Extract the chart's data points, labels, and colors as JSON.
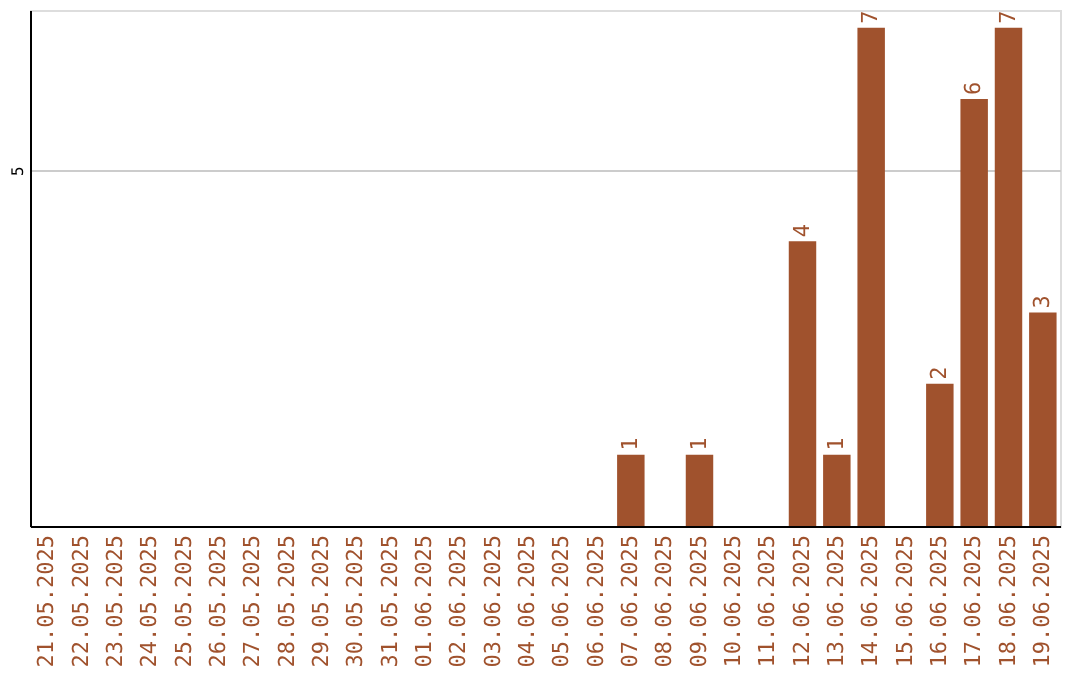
{
  "chart_data": {
    "type": "bar",
    "categories": [
      "21.05.2025",
      "22.05.2025",
      "23.05.2025",
      "24.05.2025",
      "25.05.2025",
      "26.05.2025",
      "27.05.2025",
      "28.05.2025",
      "29.05.2025",
      "30.05.2025",
      "31.05.2025",
      "01.06.2025",
      "02.06.2025",
      "03.06.2025",
      "04.06.2025",
      "05.06.2025",
      "06.06.2025",
      "07.06.2025",
      "08.06.2025",
      "09.06.2025",
      "10.06.2025",
      "11.06.2025",
      "12.06.2025",
      "13.06.2025",
      "14.06.2025",
      "15.06.2025",
      "16.06.2025",
      "17.06.2025",
      "18.06.2025",
      "19.06.2025"
    ],
    "values": [
      null,
      null,
      null,
      null,
      null,
      null,
      null,
      null,
      null,
      null,
      null,
      null,
      null,
      null,
      null,
      null,
      null,
      1,
      null,
      1,
      null,
      null,
      4,
      1,
      7,
      null,
      2,
      6,
      7,
      3
    ],
    "color": "#a0522d",
    "ylim": [
      0,
      7.25
    ],
    "yticks": [
      5
    ],
    "grid": "y",
    "data_labels": true
  }
}
